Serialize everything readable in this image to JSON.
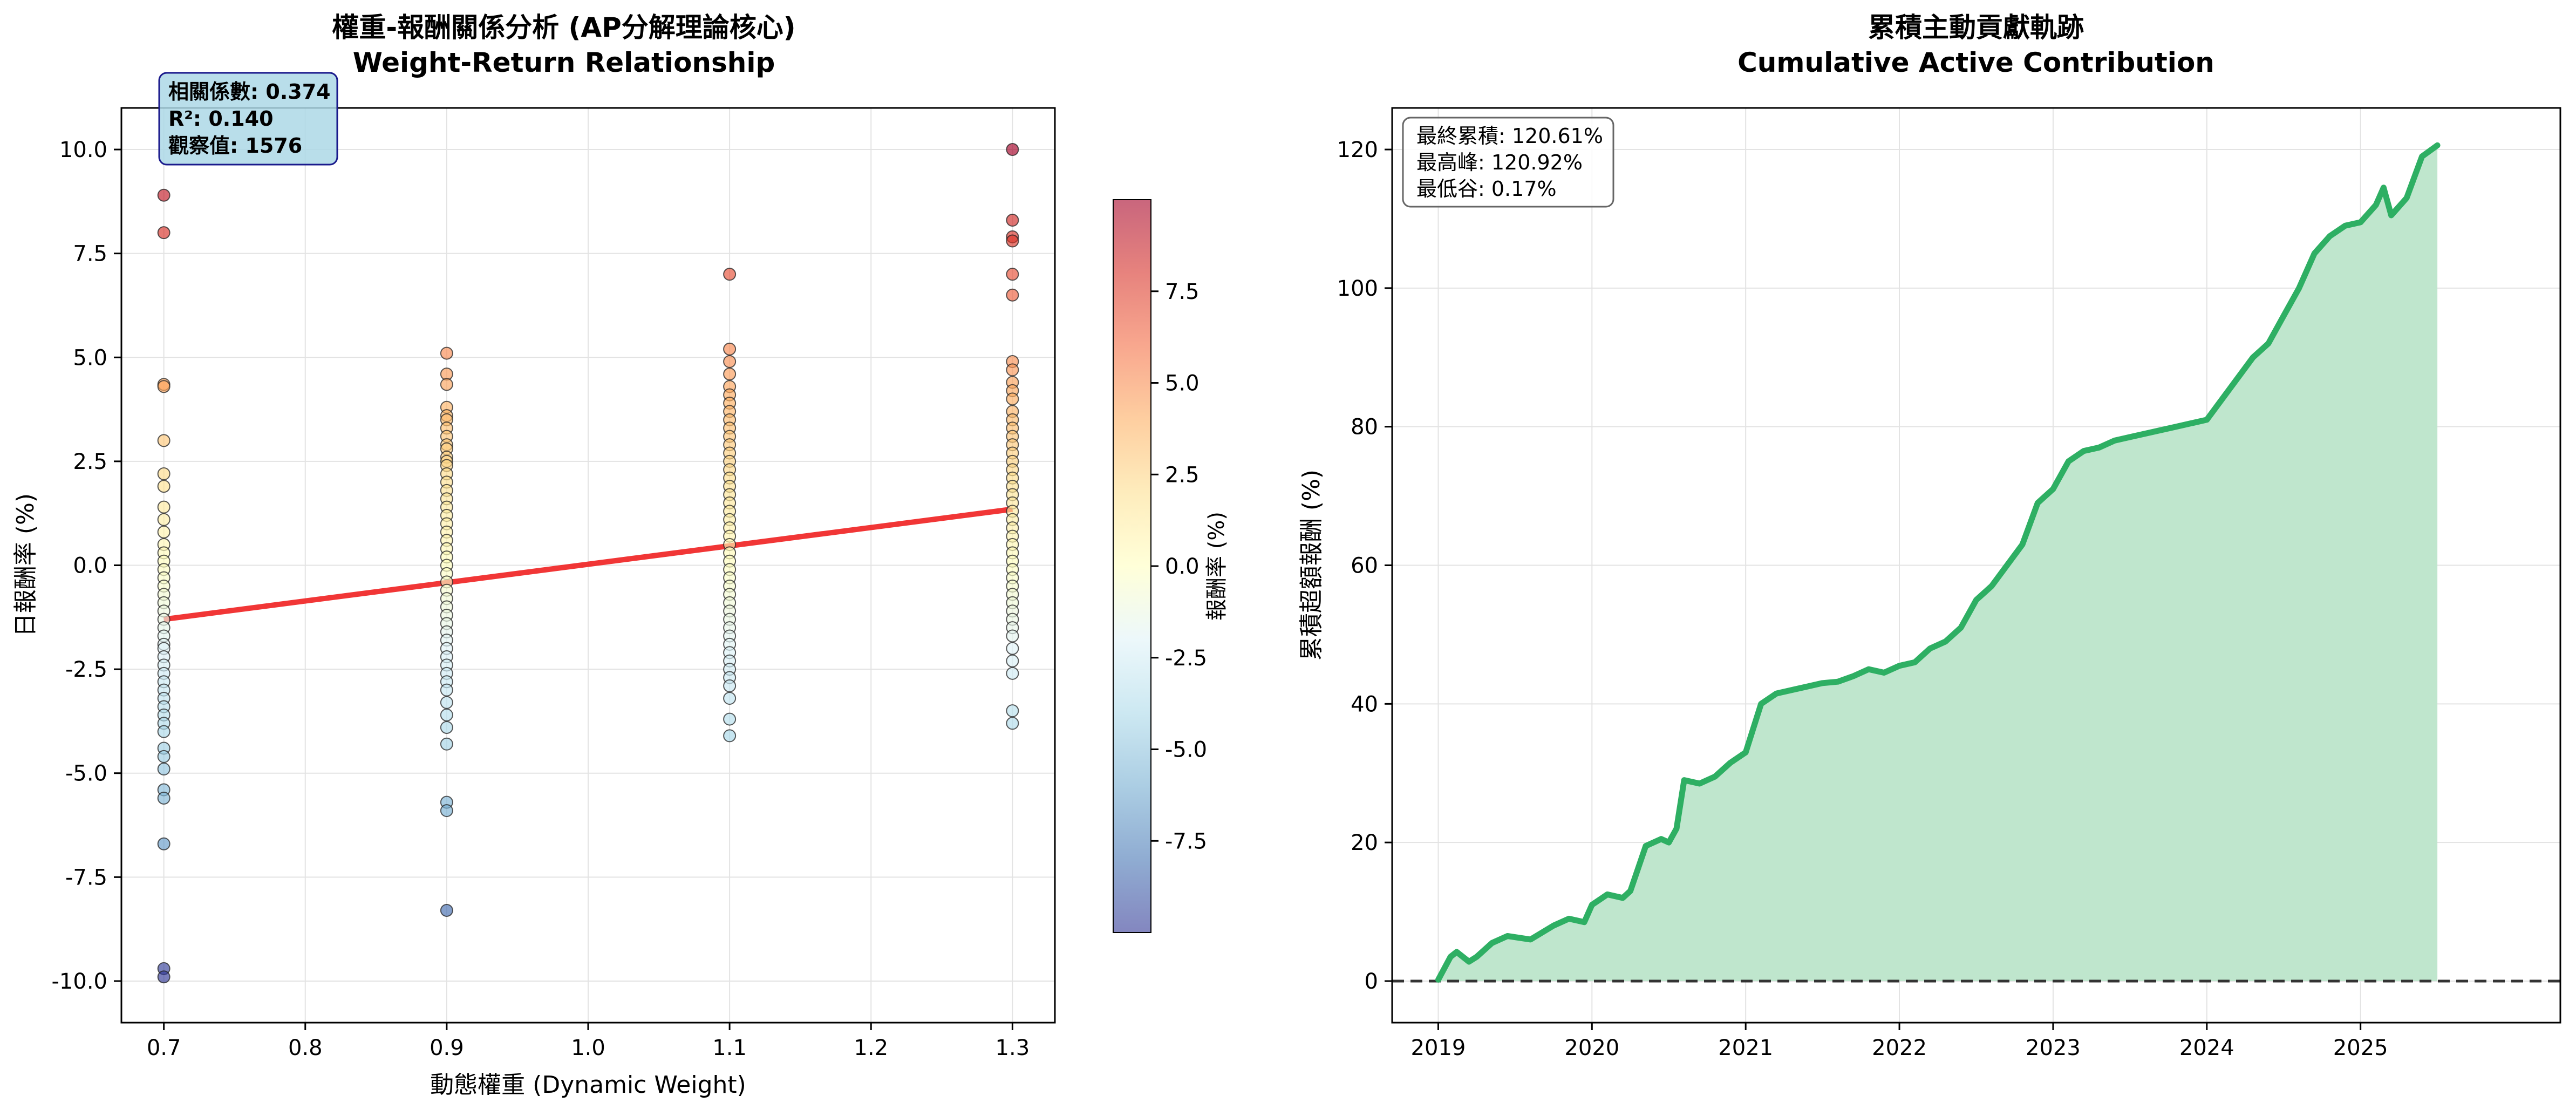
{
  "chart_data": [
    {
      "type": "scatter",
      "title": "權重-報酬關係分析 (AP分解理論核心)",
      "subtitle": "Weight-Return Relationship",
      "xlabel": "動態權重 (Dynamic Weight)",
      "ylabel": "日報酬率 (%)",
      "xlim": [
        0.67,
        1.33
      ],
      "ylim": [
        -11.0,
        11.0
      ],
      "xticks": [
        "0.7",
        "0.8",
        "0.9",
        "1.0",
        "1.1",
        "1.2",
        "1.3"
      ],
      "yticks": [
        "-10.0",
        "-7.5",
        "-5.0",
        "-2.5",
        "0.0",
        "2.5",
        "5.0",
        "7.5",
        "10.0"
      ],
      "grid": true,
      "colormap": "RdYlBu_r",
      "colorbar": {
        "label": "報酬率 (%)",
        "range": [
          -10.0,
          10.0
        ],
        "ticks": [
          "-7.5",
          "-5.0",
          "-2.5",
          "0.0",
          "2.5",
          "5.0",
          "7.5"
        ]
      },
      "fit_line": {
        "x": [
          0.7,
          1.3
        ],
        "y": [
          -1.3,
          1.35
        ],
        "color": "#ef2020"
      },
      "stats_box": [
        "相關係數: 0.374",
        "R²: 0.140",
        "觀察值: 1576"
      ],
      "points": [
        {
          "x": 0.7,
          "y": [
            8.9,
            8.0,
            4.35,
            4.3,
            3.0,
            2.2,
            1.9,
            1.4,
            1.1,
            0.8,
            0.5,
            0.3,
            0.1,
            -0.1,
            -0.3,
            -0.5,
            -0.7,
            -0.9,
            -1.1,
            -1.3,
            -1.5,
            -1.7,
            -1.9,
            -2.0,
            -2.2,
            -2.4,
            -2.6,
            -2.8,
            -3.0,
            -3.2,
            -3.4,
            -3.6,
            -3.8,
            -4.0,
            -4.4,
            -4.6,
            -4.9,
            -5.4,
            -5.6,
            -6.7,
            -9.7,
            -9.9
          ]
        },
        {
          "x": 0.9,
          "y": [
            5.1,
            4.6,
            4.35,
            3.8,
            3.6,
            3.5,
            3.3,
            3.1,
            2.9,
            2.8,
            2.6,
            2.5,
            2.4,
            2.2,
            2.0,
            1.8,
            1.6,
            1.4,
            1.2,
            1.0,
            0.8,
            0.6,
            0.4,
            0.2,
            0.0,
            -0.2,
            -0.4,
            -0.6,
            -0.8,
            -1.0,
            -1.2,
            -1.4,
            -1.6,
            -1.8,
            -2.0,
            -2.2,
            -2.4,
            -2.6,
            -2.8,
            -3.0,
            -3.3,
            -3.6,
            -3.9,
            -4.3,
            -5.7,
            -5.9,
            -8.3
          ]
        },
        {
          "x": 1.1,
          "y": [
            7.0,
            5.2,
            4.9,
            4.6,
            4.3,
            4.1,
            3.9,
            3.7,
            3.5,
            3.3,
            3.1,
            2.9,
            2.7,
            2.5,
            2.3,
            2.1,
            1.9,
            1.7,
            1.5,
            1.3,
            1.1,
            0.9,
            0.7,
            0.5,
            0.3,
            0.1,
            -0.1,
            -0.3,
            -0.5,
            -0.7,
            -0.9,
            -1.1,
            -1.3,
            -1.5,
            -1.7,
            -1.9,
            -2.1,
            -2.3,
            -2.5,
            -2.7,
            -2.9,
            -3.2,
            -3.7,
            -4.1
          ]
        },
        {
          "x": 1.3,
          "y": [
            10.0,
            8.3,
            7.9,
            7.8,
            7.0,
            6.5,
            4.9,
            4.7,
            4.4,
            4.2,
            4.0,
            3.7,
            3.5,
            3.3,
            3.1,
            2.9,
            2.7,
            2.5,
            2.3,
            2.1,
            1.9,
            1.7,
            1.5,
            1.3,
            1.1,
            0.9,
            0.7,
            0.5,
            0.3,
            0.1,
            -0.1,
            -0.3,
            -0.5,
            -0.7,
            -0.9,
            -1.1,
            -1.3,
            -1.5,
            -1.7,
            -2.0,
            -2.3,
            -2.6,
            -3.5,
            -3.8
          ]
        }
      ]
    },
    {
      "type": "area",
      "title": "累積主動貢獻軌跡",
      "subtitle": "Cumulative Active Contribution",
      "xlabel": "",
      "ylabel": "累積超額報酬 (%)",
      "xlim": [
        2018.7,
        2026.3
      ],
      "ylim": [
        -6,
        126
      ],
      "xticks": [
        "2019",
        "2020",
        "2021",
        "2022",
        "2023",
        "2024",
        "2025"
      ],
      "yticks": [
        "0",
        "20",
        "40",
        "60",
        "80",
        "100",
        "120"
      ],
      "grid": true,
      "line_color": "#2eaf63",
      "fill_color": "#bfe6cd",
      "zero_line": true,
      "stats_box": [
        "最終累積: 120.61%",
        "最高峰: 120.92%",
        "最低谷: 0.17%"
      ],
      "series": [
        {
          "x": [
            2019.0,
            2019.08,
            2019.12,
            2019.2,
            2019.25,
            2019.35,
            2019.45,
            2019.6,
            2019.75,
            2019.85,
            2019.95,
            2020.0,
            2020.1,
            2020.2,
            2020.25,
            2020.35,
            2020.45,
            2020.5,
            2020.55,
            2020.6,
            2020.7,
            2020.8,
            2020.9,
            2021.0,
            2021.1,
            2021.2,
            2021.3,
            2021.4,
            2021.5,
            2021.6,
            2021.7,
            2021.8,
            2021.9,
            2022.0,
            2022.1,
            2022.2,
            2022.3,
            2022.4,
            2022.5,
            2022.6,
            2022.7,
            2022.8,
            2022.9,
            2023.0,
            2023.1,
            2023.2,
            2023.3,
            2023.4,
            2023.5,
            2023.6,
            2023.7,
            2023.8,
            2023.9,
            2024.0,
            2024.1,
            2024.2,
            2024.3,
            2024.4,
            2024.5,
            2024.6,
            2024.7,
            2024.8,
            2024.9,
            2025.0,
            2025.1,
            2025.15,
            2025.2,
            2025.3,
            2025.4,
            2025.5
          ],
          "y": [
            0.2,
            3.5,
            4.2,
            2.8,
            3.5,
            5.5,
            6.5,
            6.0,
            8.0,
            9.0,
            8.5,
            11.0,
            12.5,
            12.0,
            13.0,
            19.5,
            20.5,
            20.0,
            22.0,
            29.0,
            28.5,
            29.5,
            31.5,
            33.0,
            40.0,
            41.5,
            42.0,
            42.5,
            43.0,
            43.2,
            44.0,
            45.0,
            44.5,
            45.5,
            46.0,
            48.0,
            49.0,
            51.0,
            55.0,
            57.0,
            60.0,
            63.0,
            69.0,
            71.0,
            75.0,
            76.5,
            77.0,
            78.0,
            78.5,
            79.0,
            79.5,
            80.0,
            80.5,
            81.0,
            84.0,
            87.0,
            90.0,
            92.0,
            96.0,
            100.0,
            105.0,
            107.5,
            109.0,
            109.5,
            112.0,
            114.5,
            110.5,
            113.0,
            119.0,
            120.6
          ]
        }
      ]
    }
  ]
}
